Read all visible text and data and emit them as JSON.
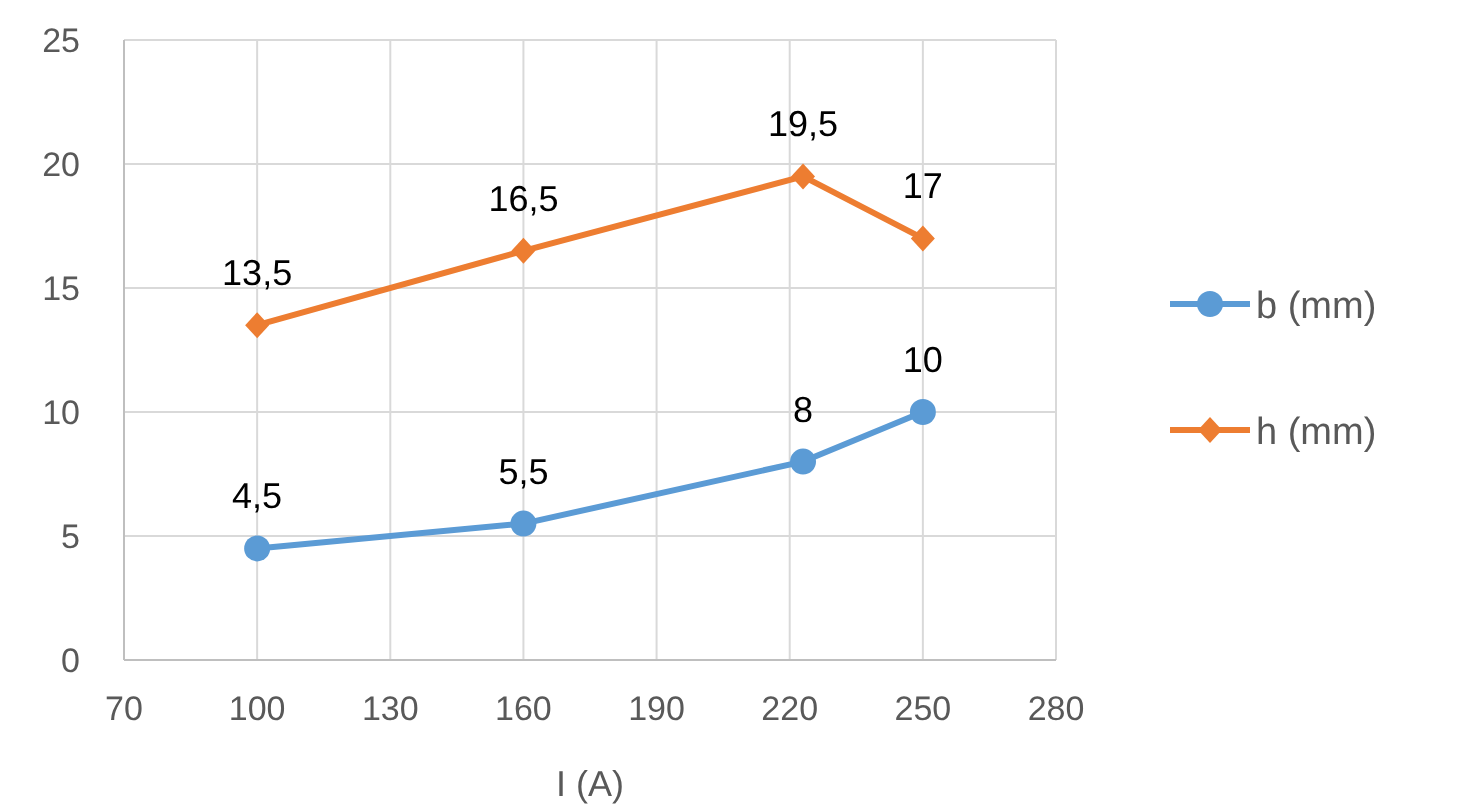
{
  "chart_data": {
    "type": "line",
    "xlabel": "I (A)",
    "x": [
      100,
      160,
      223,
      250
    ],
    "series": [
      {
        "name": "b (mm)",
        "color": "#5b9bd5",
        "marker": "circle",
        "values": [
          4.5,
          5.5,
          8,
          10
        ],
        "value_labels": [
          "4,5",
          "5,5",
          "8",
          "10"
        ]
      },
      {
        "name": "h (mm)",
        "color": "#ed7d31",
        "marker": "diamond",
        "values": [
          13.5,
          16.5,
          19.5,
          17
        ],
        "value_labels": [
          "13,5",
          "16,5",
          "19,5",
          "17"
        ]
      }
    ],
    "xlim": [
      70,
      280
    ],
    "xticks": [
      70,
      100,
      130,
      160,
      190,
      220,
      250,
      280
    ],
    "ylim": [
      0,
      25
    ],
    "yticks": [
      0,
      5,
      10,
      15,
      20,
      25
    ],
    "grid": true,
    "legend": "right"
  }
}
